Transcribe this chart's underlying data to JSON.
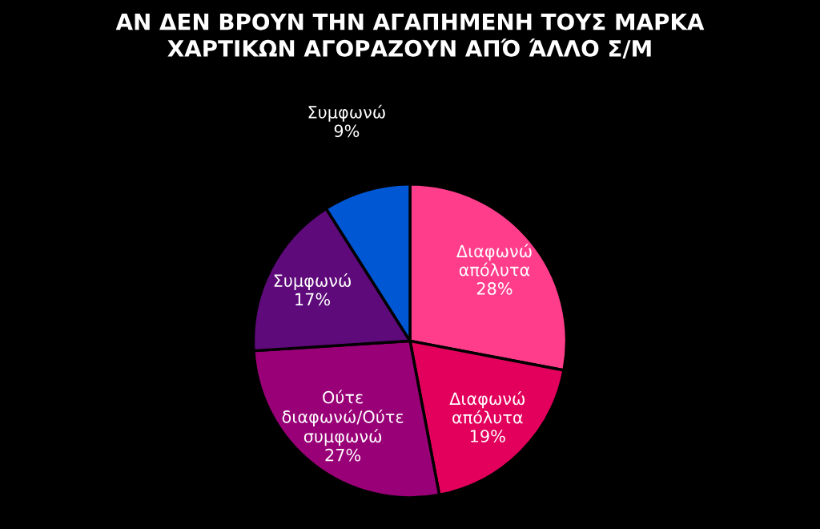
{
  "chart_data": {
    "type": "pie",
    "title": "ΑΝ ΔΕΝ ΒΡΟΥΝ ΤΗΝ ΑΓΑΠΗΜΕΝΗ ΤΟΥΣ ΜΑΡΚΑ\nΧΑΡΤΙΚΩΝ ΑΓΟΡΑΖΟΥΝ ΑΠΌ ΆΛΛΟ Σ/Μ",
    "categories": [
      "Διαφωνώ\nαπόλυτα",
      "Διαφωνώ\nαπόλυτα",
      "Ούτε\nδιαφωνώ/Ούτε\nσυμφωνώ",
      "Συμφωνώ",
      "Συμφωνώ"
    ],
    "values": [
      28,
      19,
      27,
      17,
      9
    ],
    "colors": [
      "#ff3d8b",
      "#e3005c",
      "#990077",
      "#5e0a7a",
      "#0057d4"
    ],
    "value_labels": [
      "28%",
      "19%",
      "27%",
      "17%",
      "9%"
    ]
  }
}
